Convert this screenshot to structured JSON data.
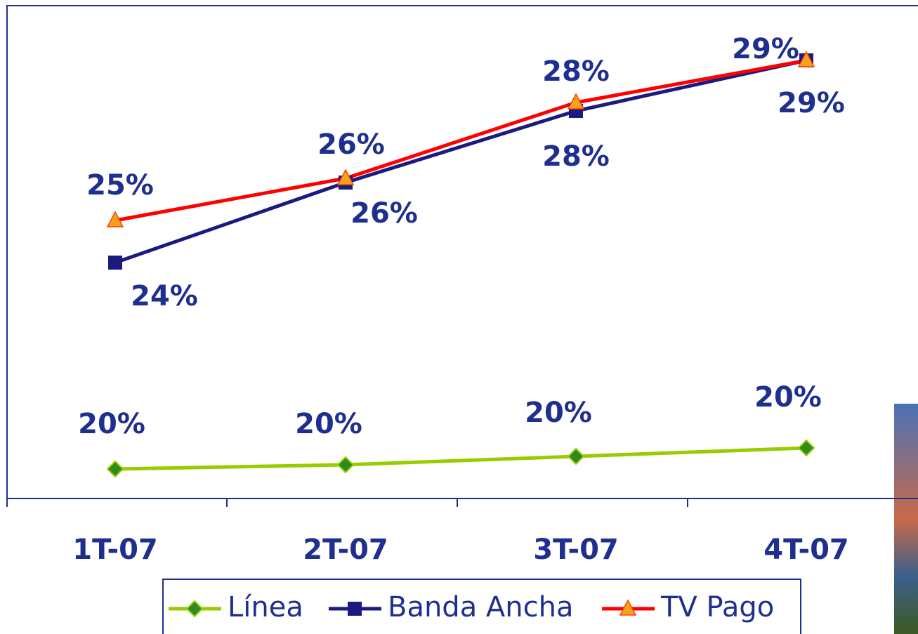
{
  "chart_data": {
    "type": "line",
    "categories": [
      "1T-07",
      "2T-07",
      "3T-07",
      "4T-07"
    ],
    "series": [
      {
        "name": "Línea",
        "color": "#99cc00",
        "marker": "diamond",
        "marker_color": "#2e8b1e",
        "values": [
          19.5,
          19.6,
          19.8,
          20.0
        ],
        "value_labels": [
          "20%",
          "20%",
          "20%",
          "20%"
        ]
      },
      {
        "name": "Banda Ancha",
        "color": "#1a1a80",
        "marker": "square",
        "marker_color": "#1a1a80",
        "values": [
          24.4,
          26.3,
          28.0,
          29.2
        ],
        "value_labels": [
          "24%",
          "26%",
          "28%",
          "29%"
        ]
      },
      {
        "name": "TV Pago",
        "color": "#ff0000",
        "marker": "triangle",
        "marker_color": "#f7a21c",
        "values": [
          25.4,
          26.4,
          28.2,
          29.2
        ],
        "value_labels": [
          "25%",
          "26%",
          "28%",
          "29%"
        ]
      }
    ],
    "ylim": [
      18.8,
      30.5
    ]
  }
}
